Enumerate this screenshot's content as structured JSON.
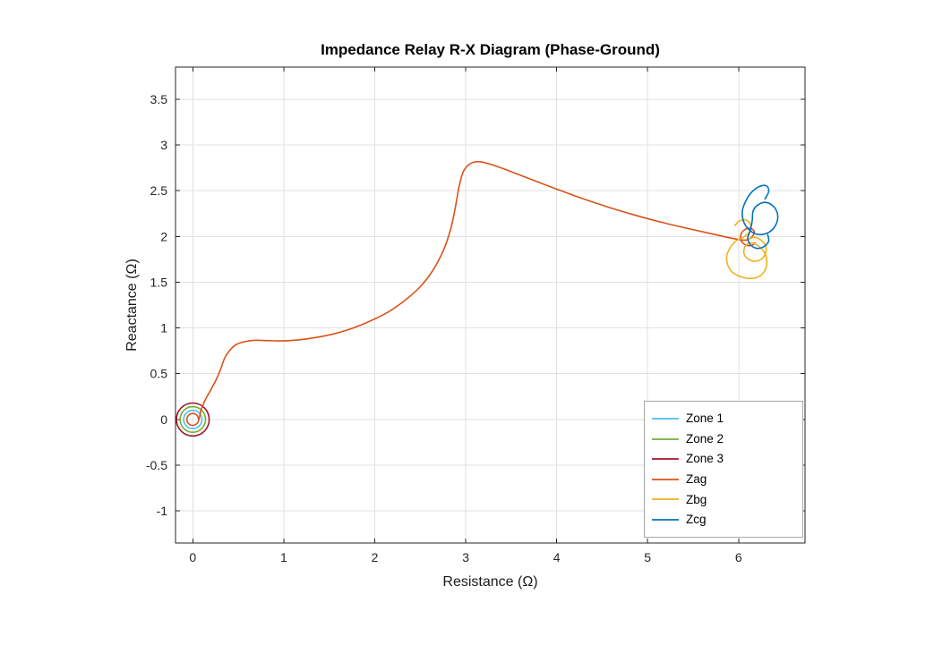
{
  "chart_data": {
    "type": "line",
    "title": "Impedance Relay R-X Diagram (Phase-Ground)",
    "xlabel": "Resistance (Ω)",
    "ylabel": "Reactance (Ω)",
    "xlim": [
      -0.19,
      6.73
    ],
    "ylim": [
      -1.35,
      3.85
    ],
    "xticks": [
      0,
      1,
      2,
      3,
      4,
      5,
      6
    ],
    "xtick_labels": [
      "0",
      "1",
      "2",
      "3",
      "4",
      "5",
      "6"
    ],
    "yticks": [
      -1,
      -0.5,
      0,
      0.5,
      1,
      1.5,
      2,
      2.5,
      3,
      3.5
    ],
    "ytick_labels": [
      "-1",
      "-0.5",
      "0",
      "0.5",
      "1",
      "1.5",
      "2",
      "2.5",
      "3",
      "3.5"
    ],
    "grid": true,
    "grid_color": "#e0e0e0",
    "axis_color": "#262626",
    "legend_position": "lower-right-inside",
    "series": [
      {
        "name": "Zone 1",
        "color": "#4DBEEE",
        "shape": "circle",
        "center": [
          0,
          0
        ],
        "radius": 0.1
      },
      {
        "name": "Zone 2",
        "color": "#77AC30",
        "shape": "circle",
        "center": [
          0,
          0
        ],
        "radius": 0.14
      },
      {
        "name": "Zone 3",
        "color": "#A2142F",
        "shape": "circle",
        "center": [
          0,
          0
        ],
        "radius": 0.18
      },
      {
        "name": "Zag",
        "color": "#D95319",
        "shape": "path",
        "points": [
          [
            0.065,
            0.0
          ],
          [
            0.046,
            0.046
          ],
          [
            0.0,
            0.065
          ],
          [
            -0.046,
            0.046
          ],
          [
            -0.065,
            0.0
          ],
          [
            -0.046,
            -0.046
          ],
          [
            0.0,
            -0.065
          ],
          [
            0.05,
            -0.04
          ],
          [
            0.07,
            0.01
          ],
          [
            0.09,
            0.1
          ],
          [
            0.13,
            0.2
          ],
          [
            0.19,
            0.31
          ],
          [
            0.26,
            0.44
          ],
          [
            0.31,
            0.56
          ],
          [
            0.35,
            0.67
          ],
          [
            0.41,
            0.76
          ],
          [
            0.48,
            0.82
          ],
          [
            0.57,
            0.85
          ],
          [
            0.68,
            0.865
          ],
          [
            0.82,
            0.862
          ],
          [
            0.98,
            0.858
          ],
          [
            1.15,
            0.868
          ],
          [
            1.35,
            0.895
          ],
          [
            1.55,
            0.935
          ],
          [
            1.75,
            0.995
          ],
          [
            1.95,
            1.075
          ],
          [
            2.15,
            1.175
          ],
          [
            2.33,
            1.3
          ],
          [
            2.5,
            1.45
          ],
          [
            2.64,
            1.63
          ],
          [
            2.76,
            1.86
          ],
          [
            2.84,
            2.1
          ],
          [
            2.89,
            2.34
          ],
          [
            2.93,
            2.56
          ],
          [
            2.98,
            2.72
          ],
          [
            3.06,
            2.8
          ],
          [
            3.16,
            2.815
          ],
          [
            3.3,
            2.78
          ],
          [
            3.48,
            2.715
          ],
          [
            3.7,
            2.63
          ],
          [
            3.95,
            2.535
          ],
          [
            4.25,
            2.425
          ],
          [
            4.55,
            2.325
          ],
          [
            4.85,
            2.235
          ],
          [
            5.15,
            2.155
          ],
          [
            5.45,
            2.085
          ],
          [
            5.72,
            2.025
          ],
          [
            5.95,
            1.975
          ],
          [
            6.08,
            1.96
          ],
          [
            6.15,
            2.0
          ],
          [
            6.17,
            2.06
          ],
          [
            6.11,
            2.09
          ],
          [
            6.04,
            2.05
          ],
          [
            6.02,
            1.97
          ],
          [
            6.07,
            1.91
          ],
          [
            6.14,
            1.9
          ],
          [
            6.18,
            1.93
          ]
        ]
      },
      {
        "name": "Zbg",
        "color": "#EDB120",
        "shape": "path",
        "points": [
          [
            5.96,
            2.12
          ],
          [
            6.01,
            2.17
          ],
          [
            6.08,
            2.18
          ],
          [
            6.13,
            2.13
          ],
          [
            6.12,
            2.05
          ],
          [
            6.05,
            1.99
          ],
          [
            5.97,
            1.95
          ],
          [
            5.91,
            1.88
          ],
          [
            5.87,
            1.79
          ],
          [
            5.88,
            1.69
          ],
          [
            5.93,
            1.61
          ],
          [
            6.02,
            1.56
          ],
          [
            6.12,
            1.54
          ],
          [
            6.22,
            1.56
          ],
          [
            6.29,
            1.63
          ],
          [
            6.31,
            1.73
          ],
          [
            6.28,
            1.83
          ],
          [
            6.21,
            1.9
          ],
          [
            6.13,
            1.93
          ],
          [
            6.07,
            1.89
          ],
          [
            6.06,
            1.81
          ],
          [
            6.11,
            1.75
          ],
          [
            6.19,
            1.73
          ],
          [
            6.26,
            1.76
          ],
          [
            6.3,
            1.83
          ],
          [
            6.29,
            1.91
          ],
          [
            6.23,
            1.97
          ],
          [
            6.16,
            1.99
          ],
          [
            6.1,
            1.96
          ]
        ]
      },
      {
        "name": "Zcg",
        "color": "#0072BD",
        "shape": "path",
        "points": [
          [
            6.29,
            2.41
          ],
          [
            6.33,
            2.49
          ],
          [
            6.31,
            2.55
          ],
          [
            6.24,
            2.55
          ],
          [
            6.15,
            2.49
          ],
          [
            6.08,
            2.39
          ],
          [
            6.04,
            2.27
          ],
          [
            6.06,
            2.15
          ],
          [
            6.13,
            2.06
          ],
          [
            6.23,
            2.02
          ],
          [
            6.34,
            2.05
          ],
          [
            6.41,
            2.13
          ],
          [
            6.43,
            2.23
          ],
          [
            6.39,
            2.32
          ],
          [
            6.31,
            2.37
          ],
          [
            6.22,
            2.35
          ],
          [
            6.16,
            2.28
          ],
          [
            6.15,
            2.18
          ],
          [
            6.13,
            2.07
          ],
          [
            6.1,
            1.98
          ],
          [
            6.13,
            1.91
          ],
          [
            6.2,
            1.87
          ],
          [
            6.28,
            1.89
          ],
          [
            6.33,
            1.95
          ],
          [
            6.32,
            2.02
          ]
        ]
      }
    ]
  }
}
